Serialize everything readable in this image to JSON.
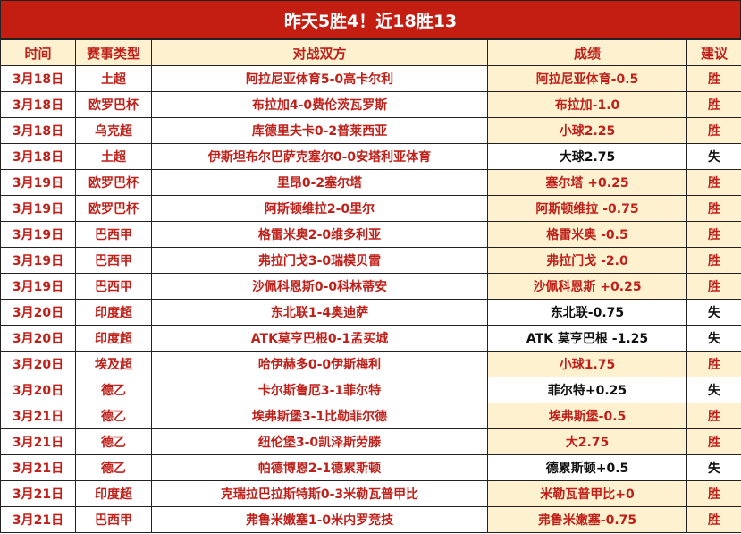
{
  "title": "昨天5胜4！近18胜13",
  "headers": [
    "时间",
    "赛事类型",
    "对战双方",
    "成绩",
    "建议"
  ],
  "colors": {
    "title_bg": "#c41e12",
    "highlight_bg": "#fdf1cf",
    "win_text": "#c0201a",
    "loss_text": "#111111"
  },
  "rows": [
    {
      "date": "3月18日",
      "league": "土超",
      "match": "阿拉尼亚体育5-0高卡尔利",
      "result": "阿拉尼亚体育-0.5",
      "advice": "胜"
    },
    {
      "date": "3月18日",
      "league": "欧罗巴杯",
      "match": "布拉加4-0费伦茨瓦罗斯",
      "result": "布拉加-1.0",
      "advice": "胜"
    },
    {
      "date": "3月18日",
      "league": "乌克超",
      "match": "库德里夫卡0-2普莱西亚",
      "result": "小球2.25",
      "advice": "胜"
    },
    {
      "date": "3月18日",
      "league": "土超",
      "match": "伊斯坦布尔巴萨克塞尔0-0安塔利亚体育",
      "result": "大球2.75",
      "advice": "失"
    },
    {
      "date": "3月19日",
      "league": "欧罗巴杯",
      "match": "里昂0-2塞尔塔",
      "result": "塞尔塔 +0.25",
      "advice": "胜"
    },
    {
      "date": "3月19日",
      "league": "欧罗巴杯",
      "match": "阿斯顿维拉2-0里尔",
      "result": "阿斯顿维拉 -0.75",
      "advice": "胜"
    },
    {
      "date": "3月19日",
      "league": "巴西甲",
      "match": "格雷米奥2-0维多利亚",
      "result": "格雷米奥 -0.5",
      "advice": "胜"
    },
    {
      "date": "3月19日",
      "league": "巴西甲",
      "match": "弗拉门戈3-0瑞模贝雷",
      "result": "弗拉门戈 -2.0",
      "advice": "胜"
    },
    {
      "date": "3月19日",
      "league": "巴西甲",
      "match": "沙佩科恩斯0-0科林蒂安",
      "result": "沙佩科恩斯 +0.25",
      "advice": "胜"
    },
    {
      "date": "3月20日",
      "league": "印度超",
      "match": "东北联1-4奥迪萨",
      "result": "东北联-0.75",
      "advice": "失"
    },
    {
      "date": "3月20日",
      "league": "印度超",
      "match": "ATK莫亨巴根0-1孟买城",
      "result": "ATK 莫亨巴根 -1.25",
      "advice": "失"
    },
    {
      "date": "3月20日",
      "league": "埃及超",
      "match": "哈伊赫多0-0伊斯梅利",
      "result": "小球1.75",
      "advice": "胜"
    },
    {
      "date": "3月20日",
      "league": "德乙",
      "match": "卡尔斯鲁厄3-1菲尔特",
      "result": "菲尔特+0.25",
      "advice": "失"
    },
    {
      "date": "3月21日",
      "league": "德乙",
      "match": "埃弗斯堡3-1比勒菲尔德",
      "result": "埃弗斯堡-0.5",
      "advice": "胜"
    },
    {
      "date": "3月21日",
      "league": "德乙",
      "match": "纽伦堡3-0凯泽斯劳滕",
      "result": "大2.75",
      "advice": "胜"
    },
    {
      "date": "3月21日",
      "league": "德乙",
      "match": "帕德博恩2-1德累斯顿",
      "result": "德累斯顿+0.5",
      "advice": "失"
    },
    {
      "date": "3月21日",
      "league": "印度超",
      "match": "克瑞拉巴拉斯特斯0-3米勒瓦普甲比",
      "result": "米勒瓦普甲比+0",
      "advice": "胜"
    },
    {
      "date": "3月21日",
      "league": "巴西甲",
      "match": "弗鲁米嫩塞1-0米内罗竞技",
      "result": "弗鲁米嫩塞-0.75",
      "advice": "胜"
    }
  ]
}
